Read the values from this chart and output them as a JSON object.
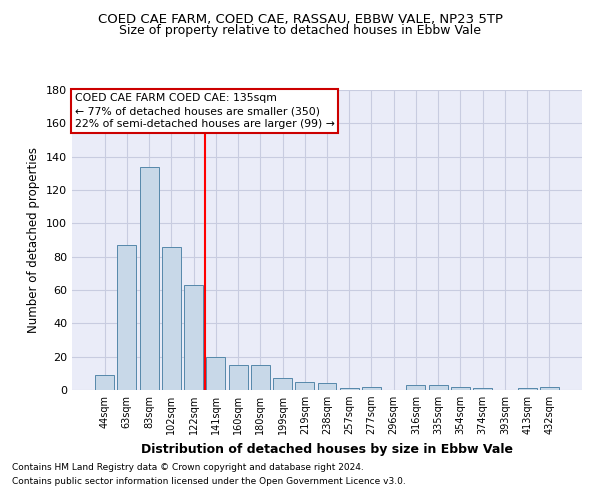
{
  "title": "COED CAE FARM, COED CAE, RASSAU, EBBW VALE, NP23 5TP",
  "subtitle": "Size of property relative to detached houses in Ebbw Vale",
  "xlabel": "Distribution of detached houses by size in Ebbw Vale",
  "ylabel": "Number of detached properties",
  "categories": [
    "44sqm",
    "63sqm",
    "83sqm",
    "102sqm",
    "122sqm",
    "141sqm",
    "160sqm",
    "180sqm",
    "199sqm",
    "219sqm",
    "238sqm",
    "257sqm",
    "277sqm",
    "296sqm",
    "316sqm",
    "335sqm",
    "354sqm",
    "374sqm",
    "393sqm",
    "413sqm",
    "432sqm"
  ],
  "values": [
    9,
    87,
    134,
    86,
    63,
    20,
    15,
    15,
    7,
    5,
    4,
    1,
    2,
    0,
    3,
    3,
    2,
    1,
    0,
    1,
    2
  ],
  "bar_color": "#c8d8e8",
  "bar_edge_color": "#5588aa",
  "redline_x": 4.5,
  "ylim": [
    0,
    180
  ],
  "yticks": [
    0,
    20,
    40,
    60,
    80,
    100,
    120,
    140,
    160,
    180
  ],
  "annotation_title": "COED CAE FARM COED CAE: 135sqm",
  "annotation_line1": "← 77% of detached houses are smaller (350)",
  "annotation_line2": "22% of semi-detached houses are larger (99) →",
  "annotation_box_color": "#ffffff",
  "annotation_box_edge": "#cc0000",
  "footer1": "Contains HM Land Registry data © Crown copyright and database right 2024.",
  "footer2": "Contains public sector information licensed under the Open Government Licence v3.0.",
  "grid_color": "#c8cce0",
  "background_color": "#eaecf8",
  "title_fontsize": 9.5,
  "subtitle_fontsize": 9
}
